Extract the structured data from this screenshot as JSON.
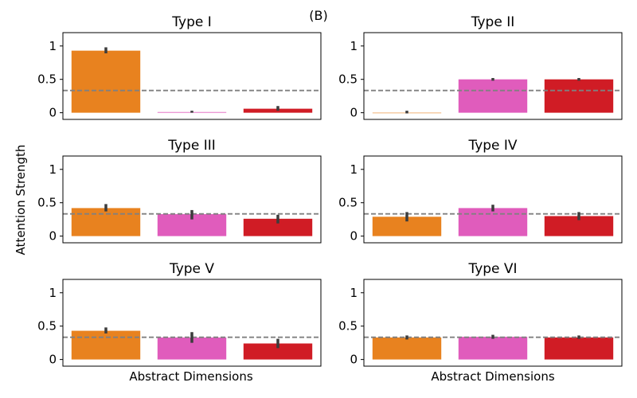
{
  "panel_label": "(B)",
  "ylabel": "Attention Strength",
  "xlabel": "Abstract Dimensions",
  "chart_data": [
    {
      "type": "bar",
      "title": "Type I",
      "categories": [
        "",
        "",
        ""
      ],
      "colors": [
        "#e8821f",
        "#e05cbc",
        "#d01c25"
      ],
      "values": [
        0.93,
        0.01,
        0.06
      ],
      "err_low": [
        0.89,
        0.0,
        0.03
      ],
      "err_high": [
        0.98,
        0.03,
        0.1
      ],
      "reference_line": 0.333,
      "ylim": [
        -0.1,
        1.2
      ],
      "yticks": [
        0,
        0.5,
        1
      ],
      "ytick_labels": [
        "0",
        "0.5",
        "1"
      ]
    },
    {
      "type": "bar",
      "title": "Type II",
      "categories": [
        "",
        "",
        ""
      ],
      "colors": [
        "#e8821f",
        "#e05cbc",
        "#d01c25"
      ],
      "values": [
        0.0,
        0.5,
        0.5
      ],
      "err_low": [
        -0.01,
        0.48,
        0.48
      ],
      "err_high": [
        0.03,
        0.52,
        0.52
      ],
      "reference_line": 0.333,
      "ylim": [
        -0.1,
        1.2
      ],
      "yticks": [
        0,
        0.5,
        1
      ],
      "ytick_labels": [
        "0",
        "0.5",
        "1"
      ]
    },
    {
      "type": "bar",
      "title": "Type III",
      "categories": [
        "",
        "",
        ""
      ],
      "colors": [
        "#e8821f",
        "#e05cbc",
        "#d01c25"
      ],
      "values": [
        0.42,
        0.33,
        0.26
      ],
      "err_low": [
        0.37,
        0.25,
        0.19
      ],
      "err_high": [
        0.48,
        0.39,
        0.32
      ],
      "reference_line": 0.333,
      "ylim": [
        -0.1,
        1.2
      ],
      "yticks": [
        0,
        0.5,
        1
      ],
      "ytick_labels": [
        "0",
        "0.5",
        "1"
      ]
    },
    {
      "type": "bar",
      "title": "Type IV",
      "categories": [
        "",
        "",
        ""
      ],
      "colors": [
        "#e8821f",
        "#e05cbc",
        "#d01c25"
      ],
      "values": [
        0.29,
        0.42,
        0.3
      ],
      "err_low": [
        0.22,
        0.37,
        0.24
      ],
      "err_high": [
        0.36,
        0.47,
        0.36
      ],
      "reference_line": 0.333,
      "ylim": [
        -0.1,
        1.2
      ],
      "yticks": [
        0,
        0.5,
        1
      ],
      "ytick_labels": [
        "0",
        "0.5",
        "1"
      ]
    },
    {
      "type": "bar",
      "title": "Type V",
      "categories": [
        "",
        "",
        ""
      ],
      "colors": [
        "#e8821f",
        "#e05cbc",
        "#d01c25"
      ],
      "values": [
        0.43,
        0.33,
        0.24
      ],
      "err_low": [
        0.39,
        0.25,
        0.17
      ],
      "err_high": [
        0.48,
        0.41,
        0.31
      ],
      "reference_line": 0.333,
      "ylim": [
        -0.1,
        1.2
      ],
      "yticks": [
        0,
        0.5,
        1
      ],
      "ytick_labels": [
        "0",
        "0.5",
        "1"
      ]
    },
    {
      "type": "bar",
      "title": "Type VI",
      "categories": [
        "",
        "",
        ""
      ],
      "colors": [
        "#e8821f",
        "#e05cbc",
        "#d01c25"
      ],
      "values": [
        0.33,
        0.34,
        0.33
      ],
      "err_low": [
        0.3,
        0.31,
        0.31
      ],
      "err_high": [
        0.36,
        0.37,
        0.36
      ],
      "reference_line": 0.333,
      "ylim": [
        -0.1,
        1.2
      ],
      "yticks": [
        0,
        0.5,
        1
      ],
      "ytick_labels": [
        "0",
        "0.5",
        "1"
      ]
    }
  ]
}
